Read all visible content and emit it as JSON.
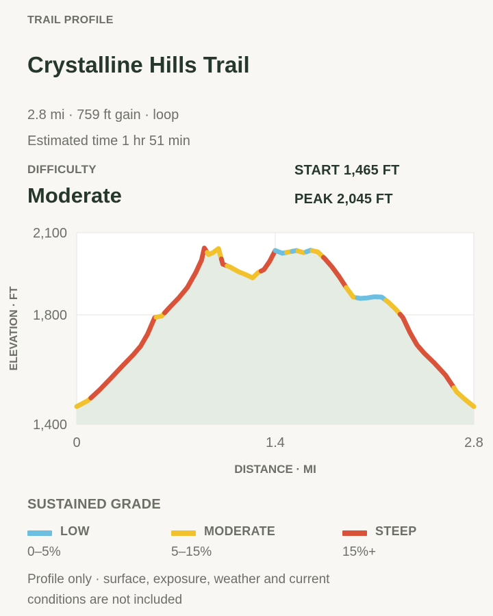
{
  "header": {
    "eyebrow": "TRAIL PROFILE",
    "title": "Crystalline Hills Trail",
    "summary": "2.8 mi · 759 ft gain · loop",
    "time": "Estimated time 1 hr 51 min"
  },
  "difficulty": {
    "label": "DIFFICULTY",
    "value": "Moderate"
  },
  "stats": {
    "start": "START 1,465 FT",
    "peak": "PEAK 2,045 FT"
  },
  "colors": {
    "low": "#6cbfe0",
    "moderate": "#f2c12e",
    "steep": "#d9533a",
    "fill": "#e4ece3",
    "text": "#26372c"
  },
  "chart_data": {
    "type": "area",
    "xlabel": "DISTANCE · MI",
    "ylabel": "ELEVATION · FT",
    "xlim": [
      0,
      2.8
    ],
    "ylim": [
      1400,
      2100
    ],
    "xticks": [
      "0",
      "1.4",
      "2.8"
    ],
    "yticks": [
      "2,100",
      "1,800",
      "1,400"
    ],
    "grid": true,
    "profile": [
      [
        0,
        1465
      ],
      [
        0.08,
        1487
      ],
      [
        0.16,
        1525
      ],
      [
        0.24,
        1568
      ],
      [
        0.32,
        1612
      ],
      [
        0.4,
        1655
      ],
      [
        0.45,
        1685
      ],
      [
        0.5,
        1730
      ],
      [
        0.55,
        1790
      ],
      [
        0.6,
        1796
      ],
      [
        0.66,
        1830
      ],
      [
        0.72,
        1862
      ],
      [
        0.78,
        1900
      ],
      [
        0.84,
        1955
      ],
      [
        0.88,
        2000
      ],
      [
        0.9,
        2044
      ],
      [
        0.93,
        2020
      ],
      [
        0.96,
        2027
      ],
      [
        1.0,
        2042
      ],
      [
        1.03,
        1985
      ],
      [
        1.08,
        1975
      ],
      [
        1.14,
        1958
      ],
      [
        1.2,
        1945
      ],
      [
        1.24,
        1935
      ],
      [
        1.28,
        1955
      ],
      [
        1.32,
        1965
      ],
      [
        1.36,
        1995
      ],
      [
        1.4,
        2035
      ],
      [
        1.45,
        2025
      ],
      [
        1.5,
        2030
      ],
      [
        1.55,
        2035
      ],
      [
        1.6,
        2027
      ],
      [
        1.65,
        2036
      ],
      [
        1.7,
        2030
      ],
      [
        1.75,
        2005
      ],
      [
        1.8,
        1975
      ],
      [
        1.85,
        1940
      ],
      [
        1.9,
        1900
      ],
      [
        1.95,
        1865
      ],
      [
        2.0,
        1860
      ],
      [
        2.05,
        1862
      ],
      [
        2.1,
        1866
      ],
      [
        2.15,
        1865
      ],
      [
        2.2,
        1845
      ],
      [
        2.25,
        1820
      ],
      [
        2.3,
        1790
      ],
      [
        2.35,
        1735
      ],
      [
        2.4,
        1690
      ],
      [
        2.45,
        1660
      ],
      [
        2.52,
        1625
      ],
      [
        2.6,
        1580
      ],
      [
        2.68,
        1518
      ],
      [
        2.74,
        1490
      ],
      [
        2.8,
        1465
      ]
    ],
    "grade_segments": [
      {
        "from": 0.0,
        "to": 0.1,
        "grade": "moderate"
      },
      {
        "from": 0.1,
        "to": 0.44,
        "grade": "steep"
      },
      {
        "from": 0.44,
        "to": 0.5,
        "grade": "steep"
      },
      {
        "from": 0.5,
        "to": 0.56,
        "grade": "steep"
      },
      {
        "from": 0.56,
        "to": 0.62,
        "grade": "moderate"
      },
      {
        "from": 0.62,
        "to": 0.92,
        "grade": "steep"
      },
      {
        "from": 0.92,
        "to": 1.02,
        "grade": "moderate"
      },
      {
        "from": 1.02,
        "to": 1.06,
        "grade": "steep"
      },
      {
        "from": 1.06,
        "to": 1.3,
        "grade": "moderate"
      },
      {
        "from": 1.3,
        "to": 1.4,
        "grade": "steep"
      },
      {
        "from": 1.4,
        "to": 1.48,
        "grade": "low"
      },
      {
        "from": 1.48,
        "to": 1.52,
        "grade": "moderate"
      },
      {
        "from": 1.52,
        "to": 1.56,
        "grade": "low"
      },
      {
        "from": 1.56,
        "to": 1.62,
        "grade": "moderate"
      },
      {
        "from": 1.62,
        "to": 1.66,
        "grade": "low"
      },
      {
        "from": 1.66,
        "to": 1.74,
        "grade": "moderate"
      },
      {
        "from": 1.74,
        "to": 1.9,
        "grade": "steep"
      },
      {
        "from": 1.9,
        "to": 1.98,
        "grade": "moderate"
      },
      {
        "from": 1.98,
        "to": 2.18,
        "grade": "low"
      },
      {
        "from": 2.18,
        "to": 2.28,
        "grade": "moderate"
      },
      {
        "from": 2.28,
        "to": 2.42,
        "grade": "steep"
      },
      {
        "from": 2.42,
        "to": 2.52,
        "grade": "steep"
      },
      {
        "from": 2.52,
        "to": 2.66,
        "grade": "steep"
      },
      {
        "from": 2.66,
        "to": 2.8,
        "grade": "moderate"
      }
    ]
  },
  "legend": {
    "title": "SUSTAINED GRADE",
    "items": [
      {
        "key": "low",
        "name": "LOW",
        "range": "0–5%"
      },
      {
        "key": "moderate",
        "name": "MODERATE",
        "range": "5–15%"
      },
      {
        "key": "steep",
        "name": "STEEP",
        "range": "15%+"
      }
    ]
  },
  "note": "Profile only · surface, exposure, weather and current conditions are not included"
}
